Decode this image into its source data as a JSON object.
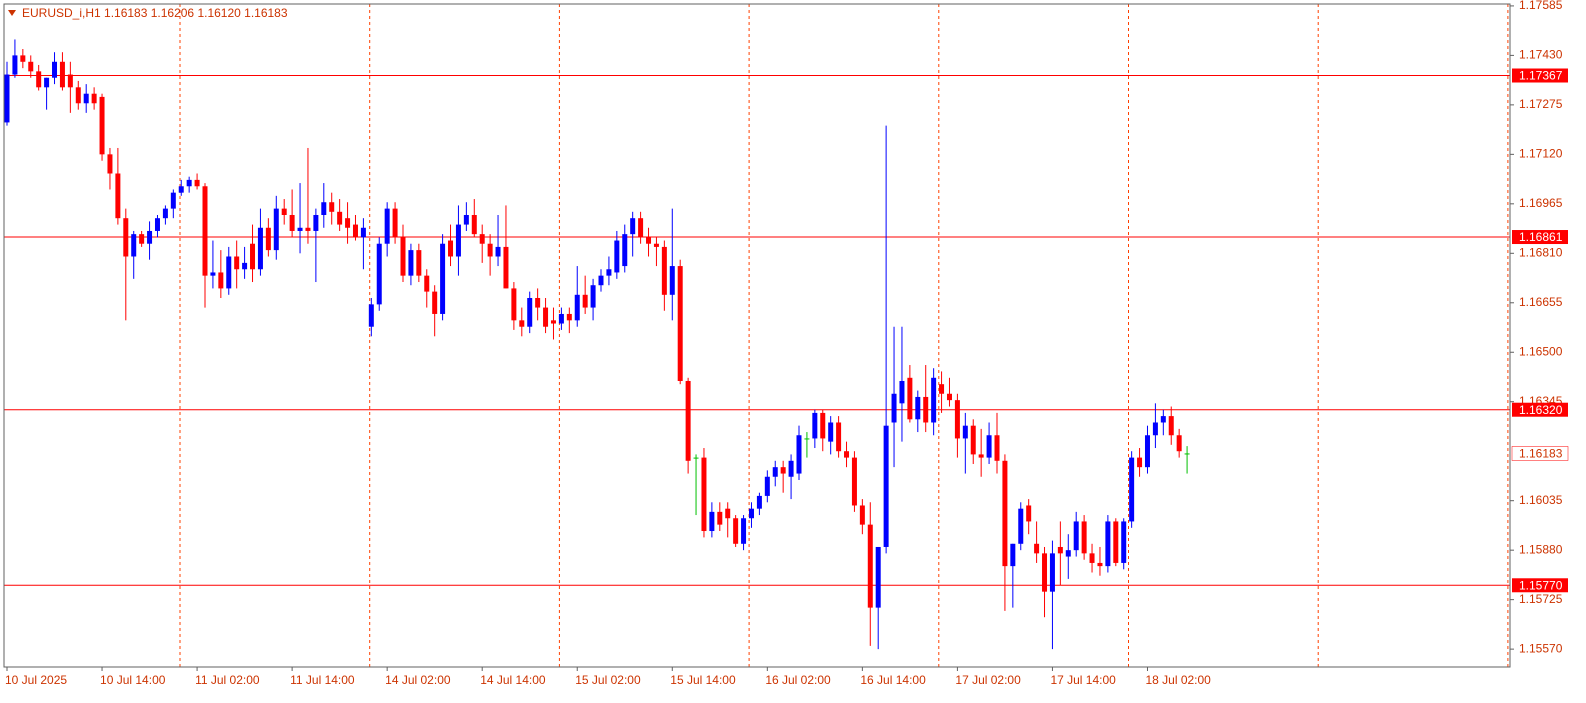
{
  "chart_data": {
    "type": "candlestick",
    "title": "EURUSD_i,H1  1.16183 1.16206 1.16120 1.16183",
    "up_color": "#0000ff",
    "down_color": "#ff0000",
    "doji_color": "#00c000",
    "level_color": "#ff0000",
    "ylim": [
      1.15514,
      1.17591
    ],
    "yticks": [
      1.17585,
      {
        "value": 1.1743,
        "label": "1.17430"
      },
      1.17275,
      {
        "value": 1.1712,
        "label": "1.17120"
      },
      1.16965,
      {
        "value": 1.1681,
        "label": "1.16810"
      },
      1.16655,
      {
        "value": 1.165,
        "label": "1.16500"
      },
      1.16345,
      1.16035,
      {
        "value": 1.1588,
        "label": "1.15880"
      },
      1.15725,
      {
        "value": 1.1557,
        "label": "1.15570"
      }
    ],
    "levels": [
      1.17367,
      1.16861,
      {
        "value": 1.1632,
        "label": "1.16320"
      },
      {
        "value": 1.1577,
        "label": "1.15770"
      }
    ],
    "price_label": 1.16183,
    "categories": [
      "10 Jul 2025",
      null,
      null,
      null,
      null,
      null,
      null,
      null,
      null,
      null,
      null,
      null,
      "10 Jul 14:00",
      null,
      null,
      null,
      null,
      null,
      null,
      null,
      null,
      null,
      null,
      null,
      "11 Jul 02:00",
      null,
      null,
      null,
      null,
      null,
      null,
      null,
      null,
      null,
      null,
      null,
      "11 Jul 14:00",
      null,
      null,
      null,
      null,
      null,
      null,
      null,
      null,
      null,
      null,
      null,
      "14 Jul 02:00",
      null,
      null,
      null,
      null,
      null,
      null,
      null,
      null,
      null,
      null,
      null,
      "14 Jul 14:00",
      null,
      null,
      null,
      null,
      null,
      null,
      null,
      null,
      null,
      null,
      null,
      "15 Jul 02:00",
      null,
      null,
      null,
      null,
      null,
      null,
      null,
      null,
      null,
      null,
      null,
      "15 Jul 14:00",
      null,
      null,
      null,
      null,
      null,
      null,
      null,
      null,
      null,
      null,
      null,
      "16 Jul 02:00",
      null,
      null,
      null,
      null,
      null,
      null,
      null,
      null,
      null,
      null,
      null,
      "16 Jul 14:00",
      null,
      null,
      null,
      null,
      null,
      null,
      null,
      null,
      null,
      null,
      null,
      "17 Jul 02:00",
      null,
      null,
      null,
      null,
      null,
      null,
      null,
      null,
      null,
      null,
      null,
      "17 Jul 14:00",
      null,
      null,
      null,
      null,
      null,
      null,
      null,
      null,
      null,
      null,
      null,
      "18 Jul 02:00",
      null,
      null,
      null,
      null,
      null
    ],
    "open": [
      1.1722,
      1.1737,
      1.1743,
      1.1741,
      1.1738,
      1.1733,
      1.1736,
      1.1741,
      1.1737,
      1.1733,
      1.1728,
      1.1731,
      1.173,
      1.1712,
      1.1706,
      1.1692,
      1.168,
      1.1687,
      1.1684,
      1.1688,
      1.1692,
      1.1695,
      1.17,
      1.1702,
      1.1704,
      1.1702,
      1.1674,
      1.1675,
      1.167,
      1.168,
      1.1676,
      1.1684,
      1.1676,
      1.1689,
      1.1682,
      1.1695,
      1.1693,
      1.1688,
      1.1689,
      1.1688,
      1.1693,
      1.1697,
      1.1694,
      1.1692,
      1.169,
      1.1686,
      1.1658,
      1.1665,
      1.1684,
      1.1695,
      1.1686,
      1.1674,
      1.1682,
      1.1674,
      1.1669,
      1.1662,
      1.1685,
      1.168,
      1.169,
      1.1693,
      1.1687,
      1.1684,
      1.168,
      1.1683,
      1.167,
      1.166,
      1.1658,
      1.1667,
      1.1664,
      1.166,
      1.1659,
      1.1662,
      1.166,
      1.1668,
      1.1664,
      1.1671,
      1.1674,
      1.1675,
      1.1677,
      1.1687,
      1.1692,
      1.1686,
      1.1684,
      1.1683,
      1.1668,
      1.1677,
      1.1641,
      1.1617,
      1.1617,
      1.1594,
      1.16,
      1.1601,
      1.1598,
      1.159,
      1.1598,
      1.1601,
      1.1605,
      1.1611,
      1.1614,
      1.1611,
      1.1612,
      1.1623,
      1.1623,
      1.1631,
      1.1622,
      1.1628,
      1.1619,
      1.1617,
      1.1602,
      1.1596,
      1.157,
      1.1589,
      1.1628,
      1.1634,
      1.1642,
      1.1629,
      1.1636,
      1.1628,
      1.164,
      1.1637,
      1.1635,
      1.1623,
      1.1627,
      1.1618,
      1.1617,
      1.1624,
      1.1616,
      1.1583,
      1.159,
      1.1602,
      1.159,
      1.1587,
      1.1575,
      1.1589,
      1.1586,
      1.1588,
      1.1597,
      1.1587,
      1.1584,
      1.1583,
      1.1597,
      1.1584,
      1.1597,
      1.1617,
      1.1614,
      1.1624,
      1.1628,
      1.163,
      1.1624,
      1.16183
    ],
    "high": [
      1.1741,
      1.1748,
      1.1745,
      1.1743,
      1.174,
      1.1736,
      1.1744,
      1.1744,
      1.1741,
      1.1735,
      1.1734,
      1.1733,
      1.1731,
      1.1714,
      1.1714,
      1.1695,
      1.1688,
      1.1688,
      1.1691,
      1.1693,
      1.1696,
      1.1701,
      1.1704,
      1.1705,
      1.1706,
      1.1703,
      1.1685,
      1.1682,
      1.1683,
      1.1685,
      1.1683,
      1.169,
      1.1695,
      1.1692,
      1.1699,
      1.1698,
      1.1701,
      1.1703,
      1.1714,
      1.1695,
      1.1703,
      1.17,
      1.1698,
      1.1697,
      1.1693,
      1.1692,
      1.1667,
      1.1686,
      1.1697,
      1.1697,
      1.169,
      1.1684,
      1.1684,
      1.1676,
      1.1671,
      1.1687,
      1.169,
      1.1696,
      1.1697,
      1.1698,
      1.169,
      1.1687,
      1.1693,
      1.1696,
      1.1672,
      1.1664,
      1.1669,
      1.167,
      1.1667,
      1.1664,
      1.1664,
      1.1664,
      1.1677,
      1.1674,
      1.1673,
      1.1676,
      1.168,
      1.1688,
      1.169,
      1.1694,
      1.1694,
      1.1689,
      1.1686,
      1.1685,
      1.1695,
      1.1679,
      1.1642,
      1.1618,
      1.162,
      1.1603,
      1.1603,
      1.1603,
      1.1599,
      1.1599,
      1.1603,
      1.1606,
      1.1613,
      1.1616,
      1.1616,
      1.1618,
      1.1627,
      1.1625,
      1.1632,
      1.1632,
      1.163,
      1.163,
      1.1622,
      1.1619,
      1.1604,
      1.1603,
      1.1589,
      1.1721,
      1.1658,
      1.1658,
      1.1646,
      1.1638,
      1.1646,
      1.1645,
      1.1644,
      1.1642,
      1.1637,
      1.1631,
      1.1629,
      1.1626,
      1.1628,
      1.1631,
      1.1618,
      1.159,
      1.1603,
      1.1604,
      1.1597,
      1.1589,
      1.1591,
      1.1597,
      1.1593,
      1.16,
      1.1599,
      1.159,
      1.1589,
      1.1599,
      1.1598,
      1.1598,
      1.1619,
      1.162,
      1.1627,
      1.1634,
      1.1632,
      1.1633,
      1.1626,
      1.16206
    ],
    "low": [
      1.1721,
      1.1736,
      1.1739,
      1.1736,
      1.1732,
      1.1726,
      1.1734,
      1.1732,
      1.1725,
      1.1726,
      1.1725,
      1.1726,
      1.171,
      1.1701,
      1.169,
      1.166,
      1.1673,
      1.1683,
      1.1679,
      1.1686,
      1.169,
      1.1692,
      1.1699,
      1.17,
      1.1701,
      1.1664,
      1.167,
      1.1667,
      1.1668,
      1.167,
      1.1673,
      1.1672,
      1.1674,
      1.168,
      1.1679,
      1.169,
      1.1686,
      1.1681,
      1.1684,
      1.1672,
      1.1689,
      1.169,
      1.1688,
      1.1684,
      1.1685,
      1.1676,
      1.1655,
      1.1663,
      1.168,
      1.1684,
      1.1672,
      1.1671,
      1.1672,
      1.1664,
      1.1655,
      1.166,
      1.1677,
      1.1674,
      1.1688,
      1.1686,
      1.1678,
      1.1674,
      1.1677,
      1.167,
      1.1657,
      1.1655,
      1.1656,
      1.166,
      1.1656,
      1.1654,
      1.1657,
      1.1656,
      1.1658,
      1.1662,
      1.166,
      1.1669,
      1.1671,
      1.1673,
      1.1675,
      1.168,
      1.1684,
      1.168,
      1.1677,
      1.1663,
      1.166,
      1.164,
      1.1612,
      1.1599,
      1.1592,
      1.1592,
      1.1594,
      1.1592,
      1.1589,
      1.1588,
      1.1595,
      1.1599,
      1.1603,
      1.1608,
      1.1606,
      1.1604,
      1.161,
      1.1617,
      1.162,
      1.1619,
      1.1618,
      1.1617,
      1.1614,
      1.16,
      1.1593,
      1.1558,
      1.1557,
      1.1587,
      1.1614,
      1.1622,
      1.1628,
      1.1625,
      1.1625,
      1.1624,
      1.1631,
      1.1633,
      1.1617,
      1.1612,
      1.1615,
      1.1611,
      1.1615,
      1.1612,
      1.1569,
      1.157,
      1.1588,
      1.1593,
      1.1584,
      1.1567,
      1.1557,
      1.1577,
      1.1579,
      1.1586,
      1.1585,
      1.1581,
      1.158,
      1.1581,
      1.1583,
      1.1582,
      1.1595,
      1.1611,
      1.1612,
      1.162,
      1.1624,
      1.1621,
      1.1617,
      1.1612
    ],
    "close": [
      1.1737,
      1.1743,
      1.1741,
      1.1738,
      1.1733,
      1.1736,
      1.1741,
      1.1733,
      1.1733,
      1.1728,
      1.1731,
      1.1728,
      1.1712,
      1.1706,
      1.1692,
      1.168,
      1.1687,
      1.1684,
      1.1688,
      1.1692,
      1.1695,
      1.17,
      1.1702,
      1.1704,
      1.1702,
      1.1674,
      1.1675,
      1.167,
      1.168,
      1.1676,
      1.1678,
      1.1676,
      1.1689,
      1.1682,
      1.1695,
      1.1693,
      1.1688,
      1.1689,
      1.1688,
      1.1693,
      1.1697,
      1.1694,
      1.169,
      1.1689,
      1.1686,
      1.1689,
      1.1665,
      1.1684,
      1.1695,
      1.1686,
      1.1674,
      1.1682,
      1.1674,
      1.1669,
      1.1662,
      1.1684,
      1.168,
      1.169,
      1.1693,
      1.1687,
      1.1684,
      1.168,
      1.1683,
      1.167,
      1.166,
      1.1658,
      1.1667,
      1.1664,
      1.1658,
      1.1659,
      1.1662,
      1.166,
      1.1668,
      1.1664,
      1.1671,
      1.1674,
      1.1676,
      1.1685,
      1.1687,
      1.1692,
      1.1686,
      1.1684,
      1.1683,
      1.1668,
      1.1677,
      1.1641,
      1.1616,
      1.1617,
      1.1594,
      1.16,
      1.1596,
      1.1598,
      1.159,
      1.1598,
      1.1601,
      1.1605,
      1.1611,
      1.1614,
      1.1612,
      1.1616,
      1.1624,
      1.1623,
      1.1631,
      1.1623,
      1.1628,
      1.1619,
      1.1617,
      1.1602,
      1.1596,
      1.157,
      1.1589,
      1.1627,
      1.1637,
      1.1641,
      1.1629,
      1.1636,
      1.1628,
      1.1642,
      1.1637,
      1.1635,
      1.1623,
      1.1627,
      1.1618,
      1.1617,
      1.1624,
      1.1616,
      1.1583,
      1.159,
      1.1601,
      1.1597,
      1.1587,
      1.1575,
      1.1587,
      1.1587,
      1.1588,
      1.1597,
      1.1587,
      1.1584,
      1.1583,
      1.1597,
      1.1584,
      1.1597,
      1.1617,
      1.1614,
      1.1624,
      1.1628,
      1.163,
      1.1624,
      1.1619,
      1.16183
    ]
  }
}
